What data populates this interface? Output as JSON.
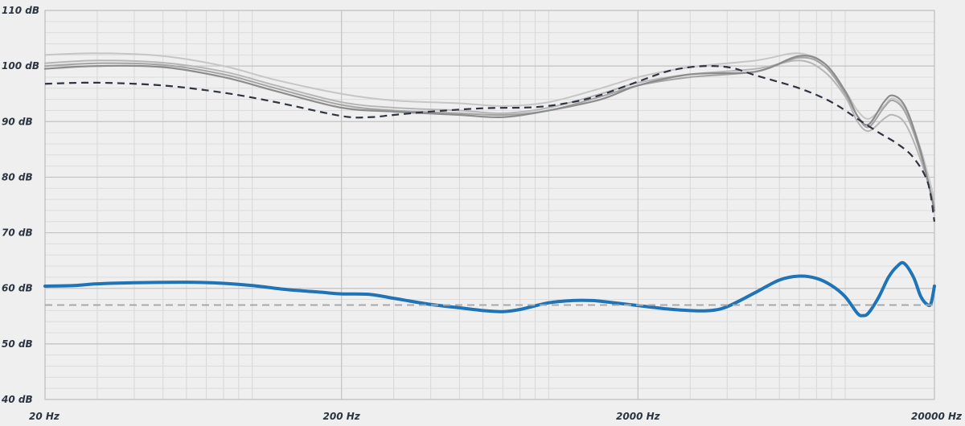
{
  "chart_data": {
    "type": "line",
    "title": "",
    "xlabel": "",
    "ylabel": "",
    "x_scale": "log",
    "xlim": [
      20,
      20000
    ],
    "ylim": [
      40,
      110
    ],
    "grid": true,
    "legend": "none",
    "y_ticks": [
      {
        "value": 110,
        "label": "110 dB"
      },
      {
        "value": 100,
        "label": "100 dB"
      },
      {
        "value": 90,
        "label": "90 dB"
      },
      {
        "value": 80,
        "label": "80 dB"
      },
      {
        "value": 70,
        "label": "70 dB"
      },
      {
        "value": 60,
        "label": "60 dB"
      },
      {
        "value": 50,
        "label": "50 dB"
      },
      {
        "value": 40,
        "label": "40 dB"
      }
    ],
    "x_ticks": [
      {
        "value": 20,
        "label": "20 Hz"
      },
      {
        "value": 200,
        "label": "200 Hz"
      },
      {
        "value": 2000,
        "label": "2000 Hz"
      },
      {
        "value": 20000,
        "label": "20000 Hz"
      }
    ],
    "series": [
      {
        "color": "#c6c6c6",
        "dash": "solid",
        "width": 2,
        "points": [
          [
            20,
            102
          ],
          [
            30,
            102.3
          ],
          [
            50,
            101.8
          ],
          [
            80,
            100
          ],
          [
            120,
            97.5
          ],
          [
            200,
            95
          ],
          [
            300,
            93.8
          ],
          [
            500,
            93.3
          ],
          [
            700,
            92.8
          ],
          [
            1000,
            93.5
          ],
          [
            1500,
            96
          ],
          [
            2000,
            98
          ],
          [
            3000,
            99.8
          ],
          [
            5000,
            101
          ],
          [
            7000,
            102.3
          ],
          [
            8500,
            100
          ],
          [
            10000,
            95.5
          ],
          [
            11000,
            92
          ],
          [
            12000,
            90.5
          ],
          [
            13500,
            92.8
          ],
          [
            14500,
            94.2
          ],
          [
            16000,
            92
          ],
          [
            18000,
            85
          ],
          [
            20000,
            76
          ]
        ]
      },
      {
        "color": "#b6b6b6",
        "dash": "solid",
        "width": 2,
        "points": [
          [
            20,
            100.5
          ],
          [
            30,
            101
          ],
          [
            50,
            100.6
          ],
          [
            80,
            99
          ],
          [
            120,
            96.5
          ],
          [
            200,
            93.5
          ],
          [
            300,
            92.5
          ],
          [
            500,
            92
          ],
          [
            700,
            91.5
          ],
          [
            1000,
            92.5
          ],
          [
            1500,
            95
          ],
          [
            2000,
            97
          ],
          [
            3000,
            98.5
          ],
          [
            5000,
            99.5
          ],
          [
            7000,
            101
          ],
          [
            8500,
            99
          ],
          [
            10000,
            94.5
          ],
          [
            11000,
            90
          ],
          [
            12000,
            88.3
          ],
          [
            13500,
            90.5
          ],
          [
            14500,
            91.2
          ],
          [
            16000,
            89.5
          ],
          [
            18000,
            83
          ],
          [
            20000,
            75
          ]
        ]
      },
      {
        "color": "#a4a4a4",
        "dash": "solid",
        "width": 2,
        "points": [
          [
            20,
            100
          ],
          [
            30,
            100.5
          ],
          [
            50,
            100.2
          ],
          [
            80,
            98.5
          ],
          [
            120,
            96
          ],
          [
            200,
            93
          ],
          [
            300,
            92
          ],
          [
            500,
            91.5
          ],
          [
            700,
            91.2
          ],
          [
            1000,
            92
          ],
          [
            1500,
            94.5
          ],
          [
            2000,
            96.5
          ],
          [
            3000,
            98
          ],
          [
            5000,
            99
          ],
          [
            7000,
            101.5
          ],
          [
            8500,
            100
          ],
          [
            10000,
            95
          ],
          [
            11000,
            91
          ],
          [
            12000,
            89
          ],
          [
            13500,
            92.5
          ],
          [
            14500,
            93.8
          ],
          [
            16000,
            91.5
          ],
          [
            18000,
            84
          ],
          [
            20000,
            74.5
          ]
        ]
      },
      {
        "color": "#8c8c8c",
        "dash": "solid",
        "width": 2.2,
        "points": [
          [
            20,
            99.5
          ],
          [
            30,
            100
          ],
          [
            50,
            99.8
          ],
          [
            80,
            98
          ],
          [
            120,
            95.5
          ],
          [
            200,
            92.5
          ],
          [
            300,
            91.8
          ],
          [
            500,
            91.2
          ],
          [
            700,
            90.8
          ],
          [
            1000,
            92
          ],
          [
            1500,
            94
          ],
          [
            2000,
            96.5
          ],
          [
            3000,
            98.5
          ],
          [
            5000,
            99
          ],
          [
            7000,
            101.8
          ],
          [
            8500,
            100.5
          ],
          [
            10000,
            95.5
          ],
          [
            11000,
            91
          ],
          [
            12000,
            89.5
          ],
          [
            13500,
            93.5
          ],
          [
            14500,
            94.7
          ],
          [
            16000,
            92.5
          ],
          [
            18000,
            84.5
          ],
          [
            20000,
            74
          ]
        ]
      },
      {
        "color": "#2e3440",
        "dash": "dashed",
        "width": 2.2,
        "points": [
          [
            20,
            96.8
          ],
          [
            30,
            97
          ],
          [
            50,
            96.5
          ],
          [
            80,
            95.2
          ],
          [
            120,
            93.5
          ],
          [
            200,
            91
          ],
          [
            250,
            90.8
          ],
          [
            300,
            91.2
          ],
          [
            400,
            91.8
          ],
          [
            600,
            92.4
          ],
          [
            900,
            92.6
          ],
          [
            1200,
            93.5
          ],
          [
            1500,
            94.8
          ],
          [
            2000,
            97.2
          ],
          [
            2500,
            99
          ],
          [
            3000,
            99.8
          ],
          [
            3600,
            100
          ],
          [
            4200,
            99.6
          ],
          [
            5000,
            98.3
          ],
          [
            7000,
            96
          ],
          [
            9000,
            93.5
          ],
          [
            11000,
            90.5
          ],
          [
            13000,
            88
          ],
          [
            15000,
            86
          ],
          [
            17000,
            83.5
          ],
          [
            19000,
            79
          ],
          [
            20000,
            72
          ]
        ]
      },
      {
        "color": "#1f73b7",
        "dash": "solid",
        "width": 4,
        "points": [
          [
            20,
            60.4
          ],
          [
            25,
            60.5
          ],
          [
            30,
            60.8
          ],
          [
            40,
            61
          ],
          [
            60,
            61.1
          ],
          [
            80,
            60.9
          ],
          [
            100,
            60.5
          ],
          [
            130,
            59.8
          ],
          [
            170,
            59.3
          ],
          [
            200,
            59
          ],
          [
            250,
            58.9
          ],
          [
            300,
            58.2
          ],
          [
            400,
            57.1
          ],
          [
            500,
            56.5
          ],
          [
            600,
            56
          ],
          [
            700,
            55.8
          ],
          [
            800,
            56.2
          ],
          [
            1000,
            57.4
          ],
          [
            1200,
            57.8
          ],
          [
            1400,
            57.8
          ],
          [
            1600,
            57.5
          ],
          [
            2000,
            56.9
          ],
          [
            2500,
            56.3
          ],
          [
            3000,
            56
          ],
          [
            3500,
            56
          ],
          [
            4000,
            56.7
          ],
          [
            5000,
            59.3
          ],
          [
            6000,
            61.5
          ],
          [
            7000,
            62.2
          ],
          [
            8000,
            61.8
          ],
          [
            9000,
            60.5
          ],
          [
            10000,
            58.5
          ],
          [
            11000,
            55.5
          ],
          [
            11500,
            55.1
          ],
          [
            12000,
            55.6
          ],
          [
            13000,
            58.5
          ],
          [
            14000,
            62
          ],
          [
            15000,
            64
          ],
          [
            15800,
            64.5
          ],
          [
            17000,
            62
          ],
          [
            18000,
            58.5
          ],
          [
            19000,
            57
          ],
          [
            19500,
            57.4
          ],
          [
            20000,
            60.4
          ]
        ]
      },
      {
        "color": "#a8a8a8",
        "dash": "dashed",
        "width": 2,
        "points": [
          [
            20,
            57
          ],
          [
            20000,
            57
          ]
        ]
      }
    ]
  }
}
